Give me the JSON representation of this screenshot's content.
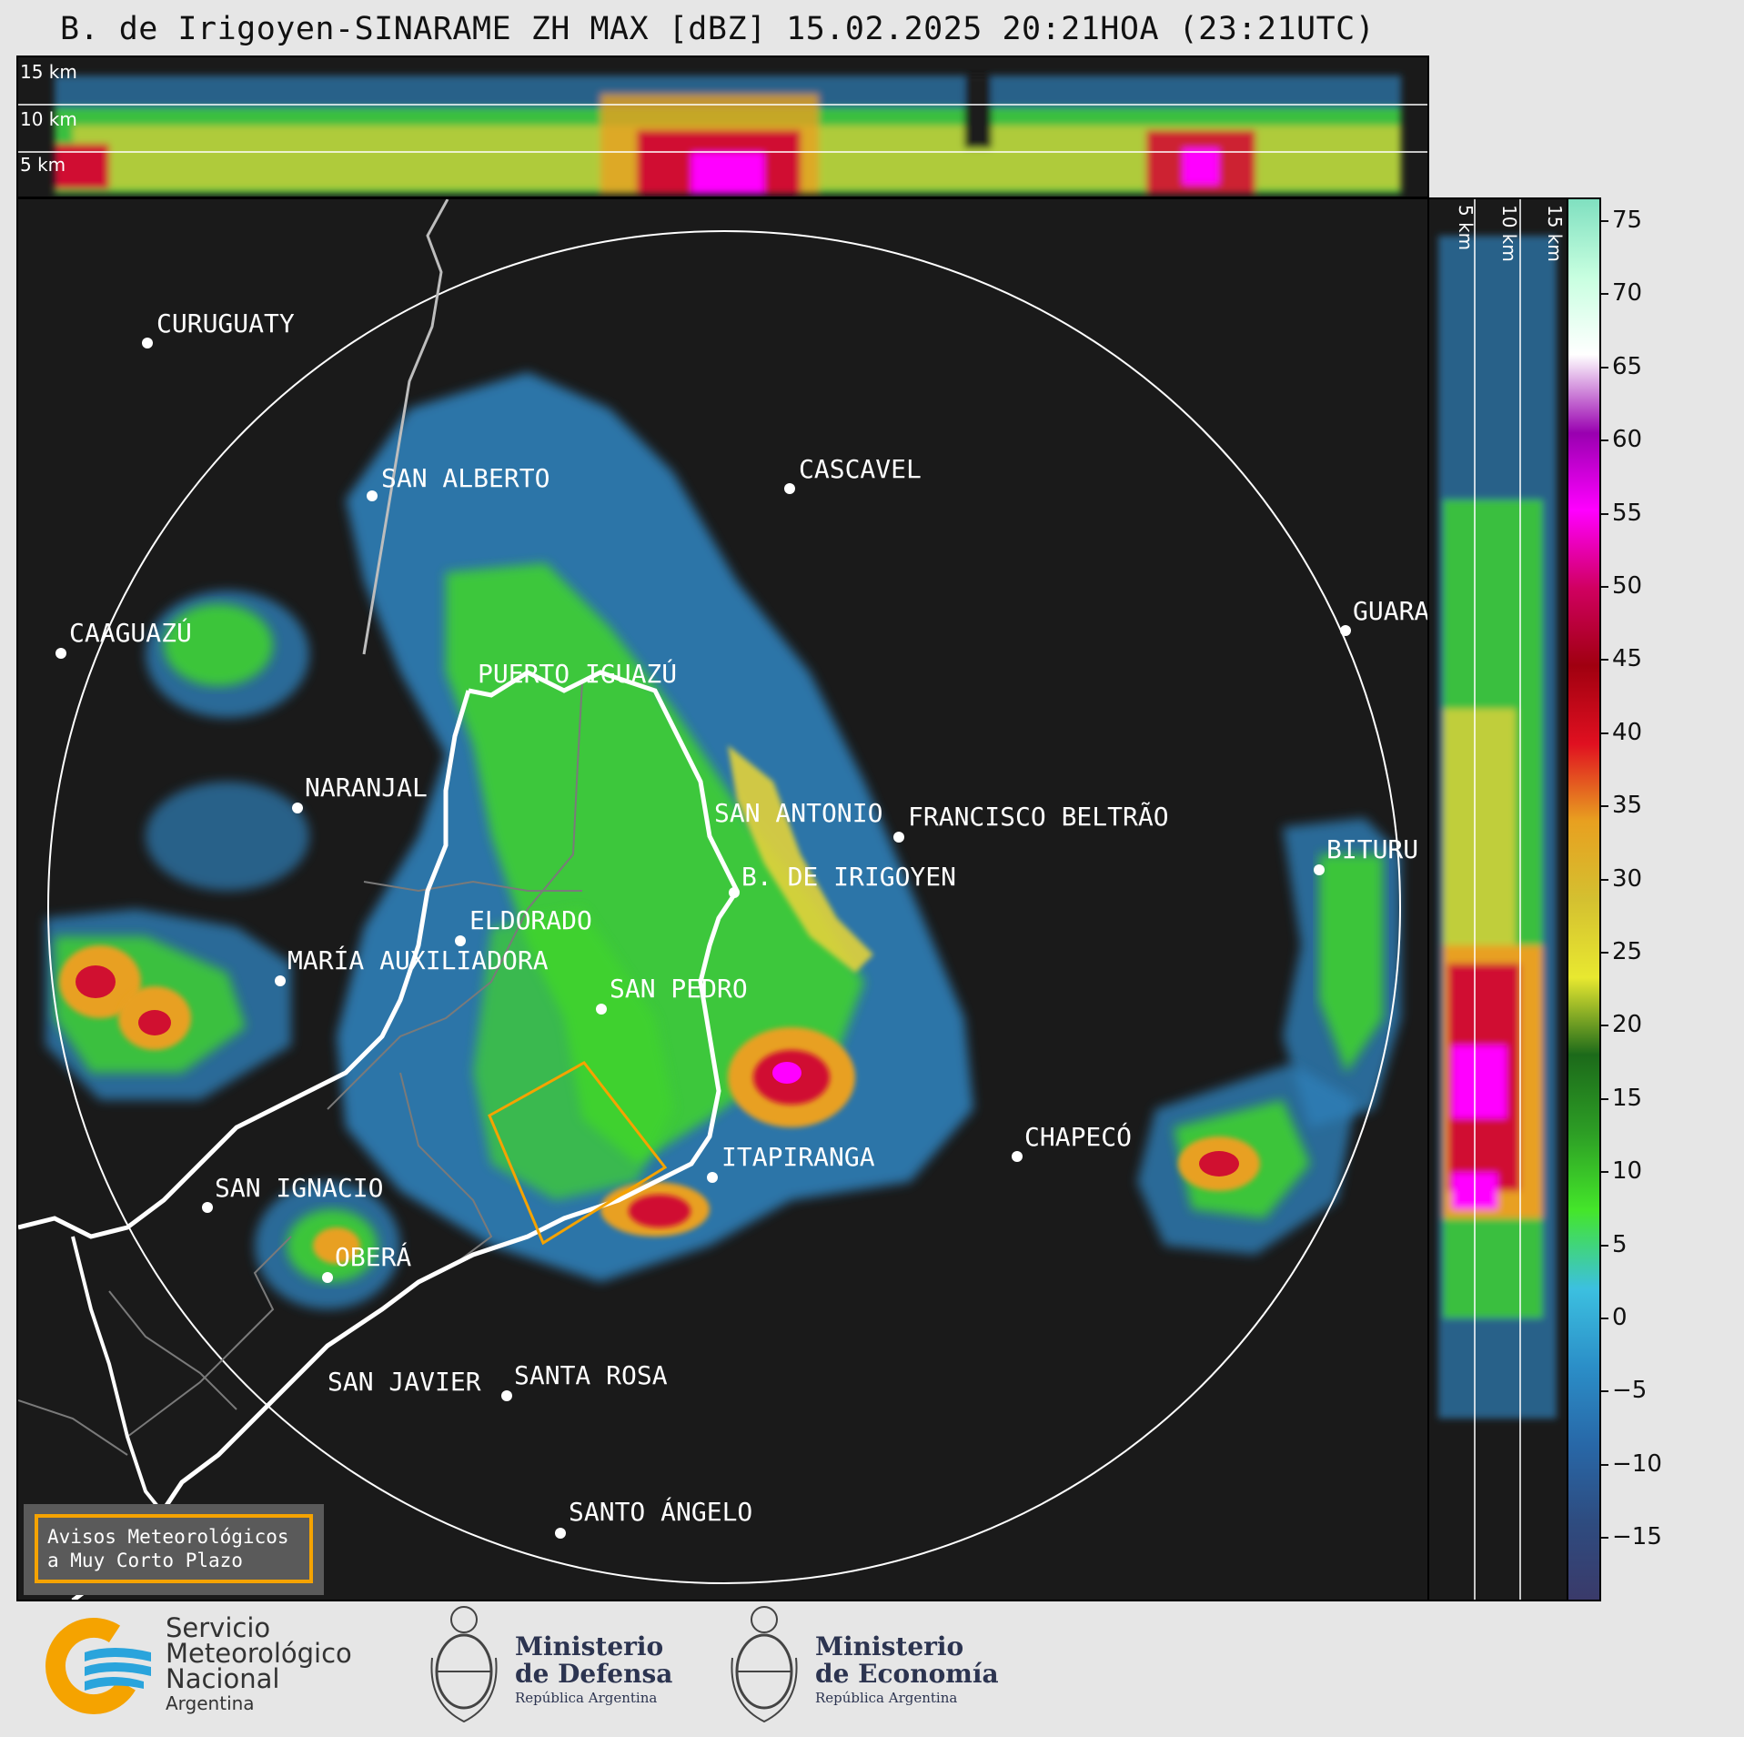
{
  "title": "B. de Irigoyen-SINARAME ZH MAX [dBZ] 15.02.2025 20:21HOA (23:21UTC)",
  "height_labels_top": [
    "15 km",
    "10 km",
    "5 km"
  ],
  "height_labels_side": [
    "5 km",
    "10 km",
    "15 km"
  ],
  "colorbar": {
    "ticks": [
      "75",
      "70",
      "65",
      "60",
      "55",
      "50",
      "45",
      "40",
      "35",
      "30",
      "25",
      "20",
      "15",
      "10",
      "5",
      "0",
      "−5",
      "−10",
      "−15"
    ],
    "colors": [
      "#3a3a6a",
      "#2e4c80",
      "#2868a8",
      "#2b8fc8",
      "#3cc0e0",
      "#44e62a",
      "#2d9e25",
      "#1c6a1a",
      "#e8e830",
      "#d4c030",
      "#e8a020",
      "#e01020",
      "#a00010",
      "#d00060",
      "#ff00ff",
      "#9900b0",
      "#ffffff",
      "#c8ffe0",
      "#80e0c0"
    ]
  },
  "cities": [
    {
      "name": "CURUGUATY"
    },
    {
      "name": "SAN ALBERTO"
    },
    {
      "name": "CASCAVEL"
    },
    {
      "name": "CAAGUAZÚ"
    },
    {
      "name": "PUERTO IGUAZÚ"
    },
    {
      "name": "GUARA"
    },
    {
      "name": "NARANJAL"
    },
    {
      "name": "SAN ANTONIO"
    },
    {
      "name": "FRANCISCO BELTRÃO"
    },
    {
      "name": "BITURU"
    },
    {
      "name": "B. DE IRIGOYEN"
    },
    {
      "name": "ELDORADO"
    },
    {
      "name": "MARÍA AUXILIADORA"
    },
    {
      "name": "SAN PEDRO"
    },
    {
      "name": "CHAPECÓ"
    },
    {
      "name": "ITAPIRANGA"
    },
    {
      "name": "SAN IGNACIO"
    },
    {
      "name": "OBERÁ"
    },
    {
      "name": "SAN JAVIER"
    },
    {
      "name": "SANTA ROSA"
    },
    {
      "name": "SANTO ÁNGELO"
    }
  ],
  "warning": {
    "line1": "Avisos Meteorológicos",
    "line2": "a Muy Corto Plazo",
    "color": "#f5a300"
  },
  "logos": {
    "smn_line1": "Servicio",
    "smn_line2": "Meteorológico",
    "smn_line3": "Nacional",
    "smn_line4": "Argentina",
    "def_line1": "Ministerio",
    "def_line2": "de Defensa",
    "def_line3": "República Argentina",
    "eco_line1": "Ministerio",
    "eco_line2": "de Economía",
    "eco_line3": "República Argentina"
  }
}
